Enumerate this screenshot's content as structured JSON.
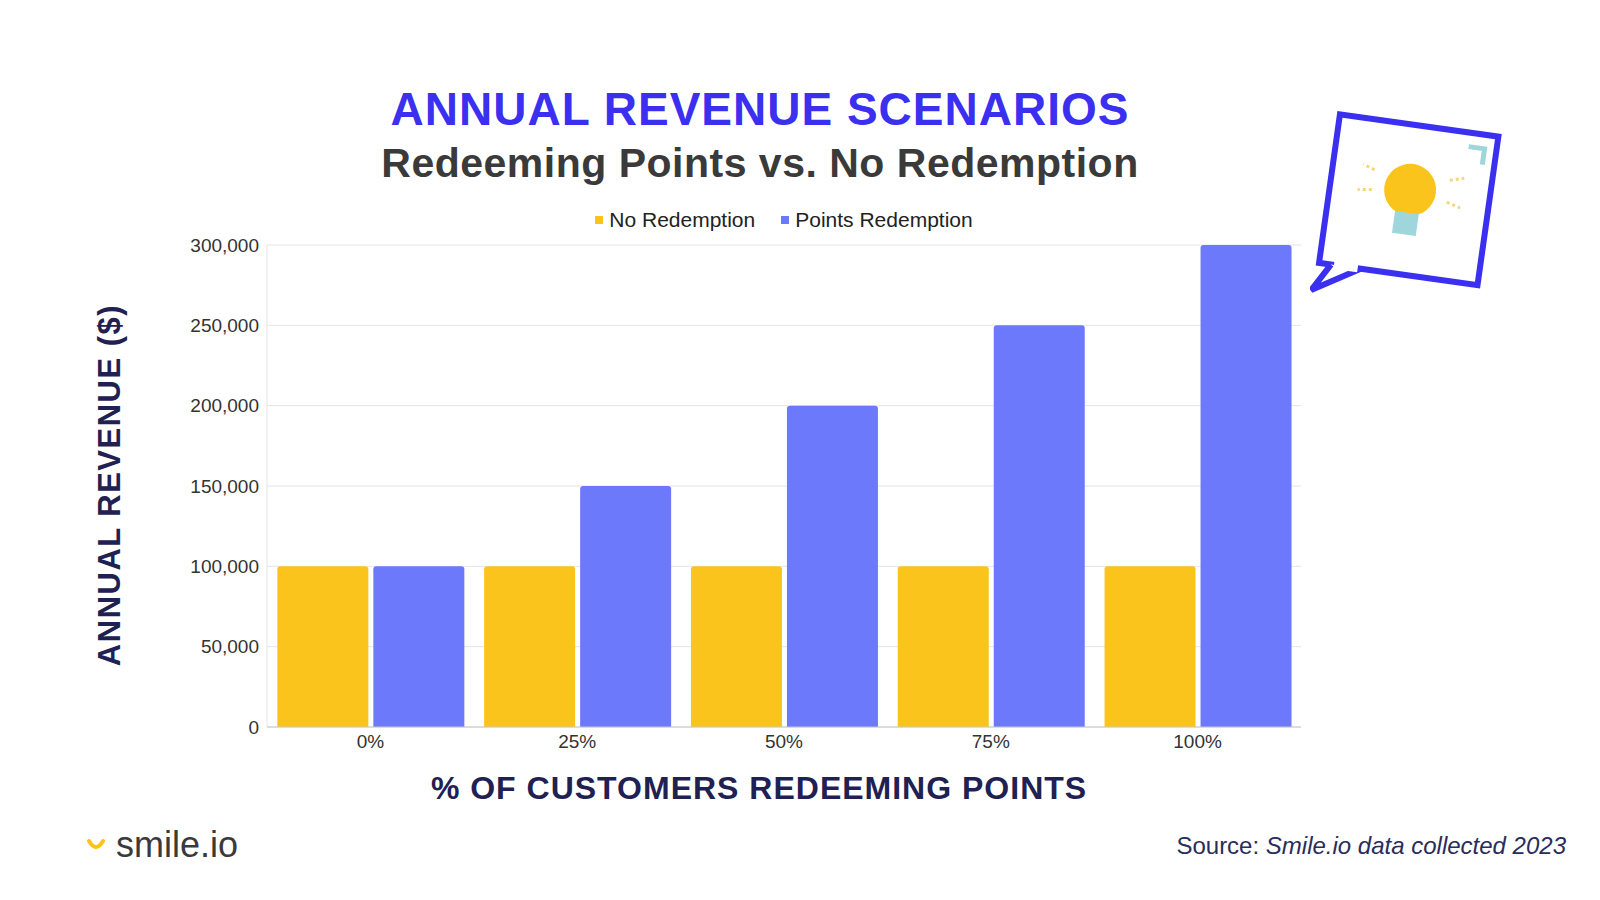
{
  "chart_data": {
    "type": "bar",
    "title": "ANNUAL REVENUE SCENARIOS",
    "subtitle": "Redeeming Points vs. No Redemption",
    "x_label": "% OF CUSTOMERS REDEEMING POINTS",
    "y_label": "ANNUAL REVENUE ($)",
    "logo": "smile.io",
    "source_label": "Source:",
    "source": "Smile.io data collected 2023",
    "categories": [
      "0%",
      "25%",
      "50%",
      "75%",
      "100%"
    ],
    "series": [
      {
        "name": "No Redemption",
        "color": "#fbc41c",
        "values": [
          100000,
          100000,
          100000,
          100000,
          100000
        ]
      },
      {
        "name": "Points Redemption",
        "color": "#6b79fa",
        "values": [
          100000,
          150000,
          200000,
          250000,
          300000
        ]
      }
    ],
    "ylim": [
      0,
      300000
    ],
    "yticks": [
      0,
      {
        "value": 50000,
        "label": "50,000"
      },
      {
        "value": 100000,
        "label": "100,000"
      },
      {
        "value": 150000,
        "label": "150,000"
      },
      {
        "value": 200000,
        "label": "200,000"
      },
      {
        "value": 250000,
        "label": "250,000"
      },
      {
        "value": 300000,
        "label": "300,000"
      }
    ],
    "grid": true,
    "legend": "top"
  }
}
